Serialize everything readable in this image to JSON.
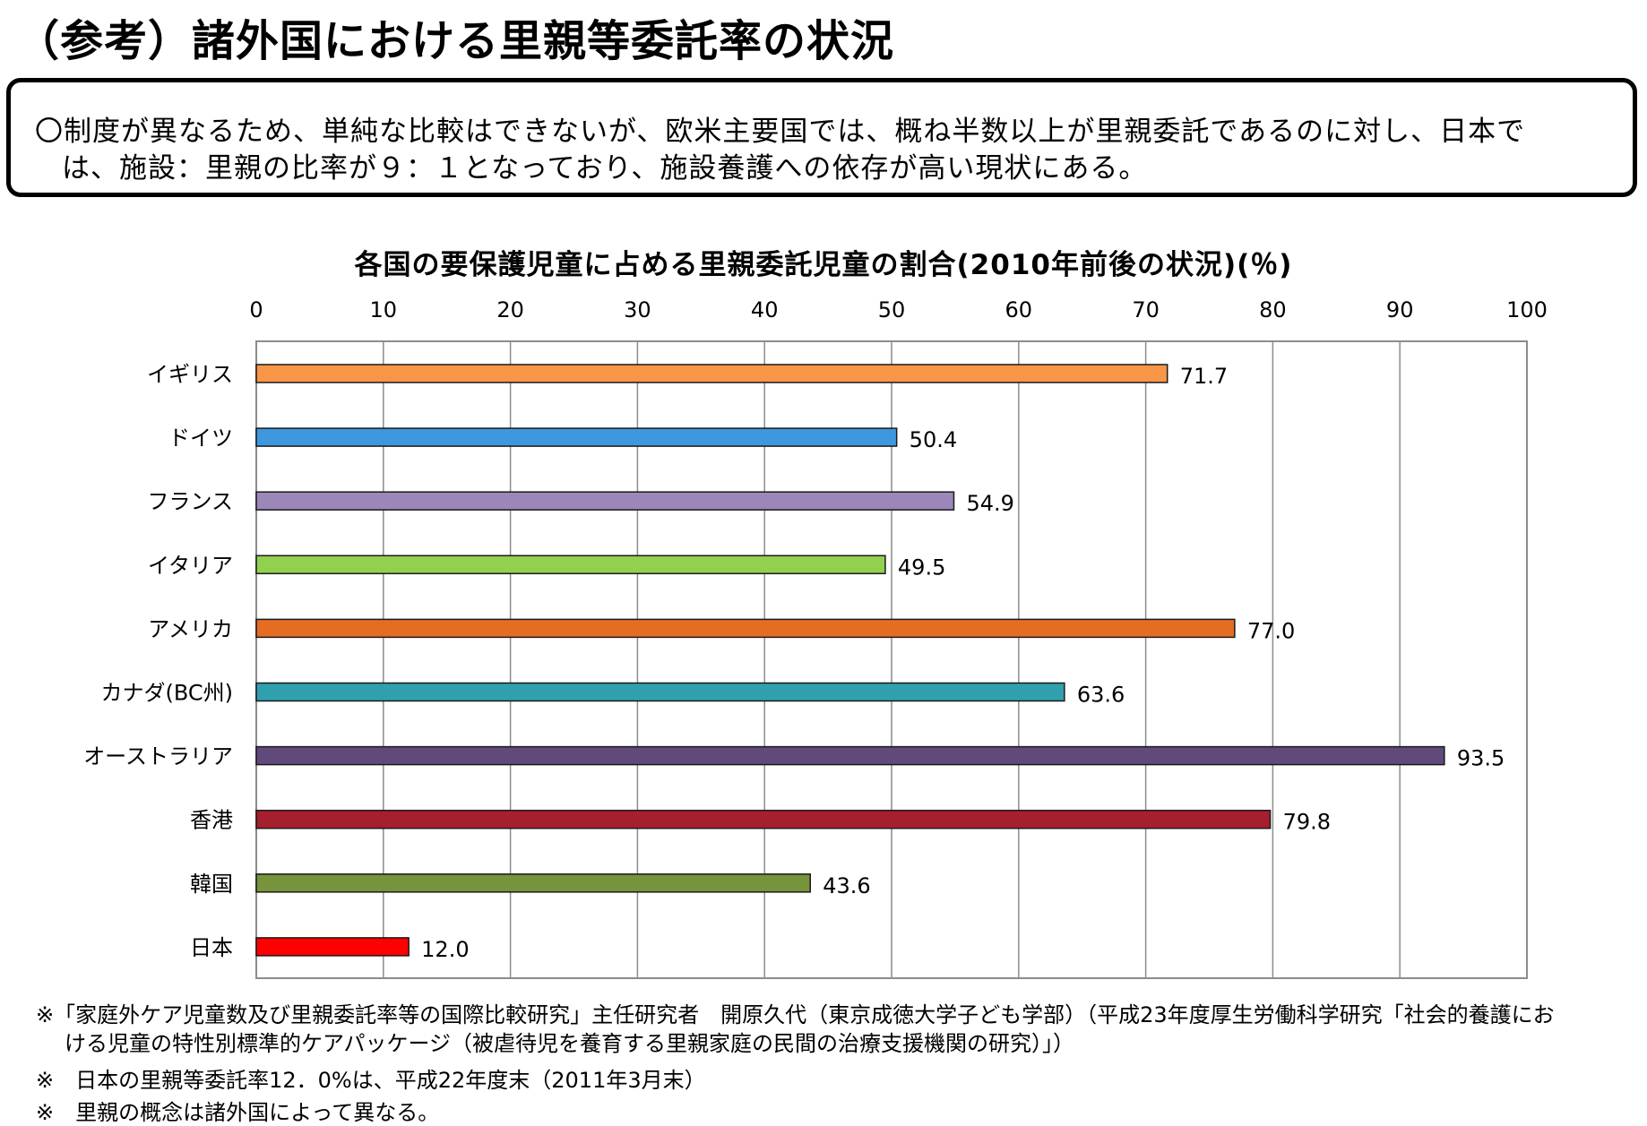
{
  "page_title": "（参考）諸外国における里親等委託率の状況",
  "summary": {
    "line1": "〇制度が異なるため、単純な比較はできないが、欧米主要国では、概ね半数以上が里親委託であるのに対し、日本で",
    "line2": "は、施設：里親の比率が９：１となっており、施設養護への依存が高い現状にある。"
  },
  "chart_data": {
    "type": "bar",
    "orientation": "horizontal",
    "title": "各国の要保護児童に占める里親委託児童の割合(2010年前後の状況)(％)",
    "categories": [
      "イギリス",
      "ドイツ",
      "フランス",
      "イタリア",
      "アメリカ",
      "カナダ(BC州)",
      "オーストラリア",
      "香港",
      "韓国",
      "日本"
    ],
    "values": [
      71.7,
      50.4,
      54.9,
      49.5,
      77.0,
      63.6,
      93.5,
      79.8,
      43.6,
      12.0
    ],
    "value_labels": [
      "71.7",
      "50.4",
      "54.9",
      "49.5",
      "77.0",
      "63.6",
      "93.5",
      "79.8",
      "43.6",
      "12.0"
    ],
    "colors": [
      "#F79646",
      "#3F97DD",
      "#9C87BA",
      "#92D050",
      "#E46C23",
      "#31A0AE",
      "#604A7B",
      "#A51F2E",
      "#77933C",
      "#FF0000"
    ],
    "xlim": [
      0,
      100
    ],
    "xticks": [
      "0",
      "10",
      "20",
      "30",
      "40",
      "50",
      "60",
      "70",
      "80",
      "90",
      "100"
    ],
    "xtick_values": [
      0,
      10,
      20,
      30,
      40,
      50,
      60,
      70,
      80,
      90,
      100
    ],
    "x_axis_position": "top",
    "grid": true,
    "xlabel": "",
    "ylabel": ""
  },
  "footnotes": {
    "fn1_line1": "※「家庭外ケア児童数及び里親委託率等の国際比較研究」主任研究者　開原久代（東京成徳大学子ども学部）（平成23年度厚生労働科学研究「社会的養護にお",
    "fn1_line2": "ける児童の特性別標準的ケアパッケージ（被虐待児を養育する里親家庭の民間の治療支援機関の研究）」）",
    "fn2": "※　日本の里親等委託率12．0%は、平成22年度末（2011年3月末）",
    "fn3": "※　里親の概念は諸外国によって異なる。"
  }
}
